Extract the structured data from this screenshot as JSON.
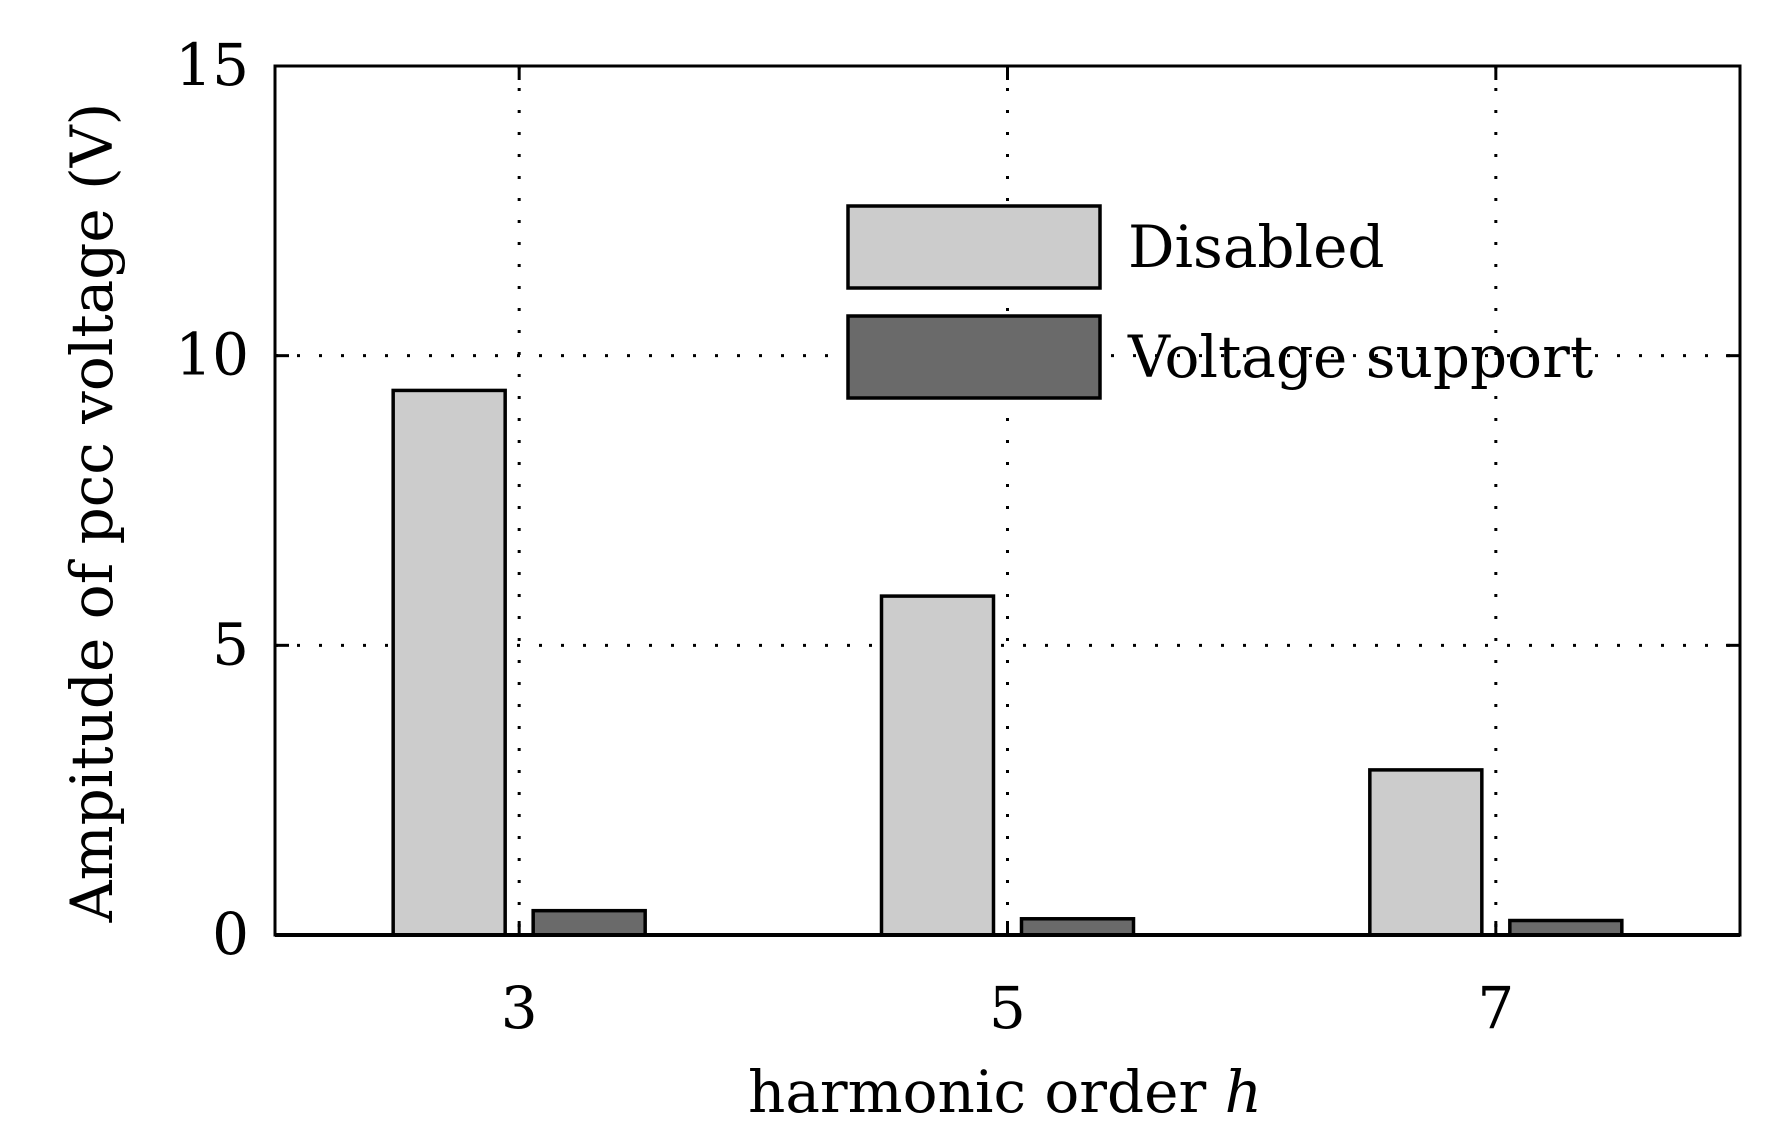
{
  "chart_data": {
    "type": "bar",
    "categories": [
      "3",
      "5",
      "7"
    ],
    "series": [
      {
        "name": "Disabled",
        "values": [
          9.4,
          5.85,
          2.85
        ],
        "color": "#cccccc"
      },
      {
        "name": "Voltage support",
        "values": [
          0.42,
          0.28,
          0.25
        ],
        "color": "#6a6a6a"
      }
    ],
    "xlabel": "harmonic order",
    "xlabel_var": "h",
    "ylabel": "Ampitude of pcc voltage (V)",
    "ylim": [
      0,
      15
    ],
    "yticks": [
      0,
      5,
      10,
      15
    ],
    "yticklabels": [
      "0",
      "5",
      "10",
      "15"
    ],
    "grid": true,
    "grid_style": "dotted",
    "legend_position": "top-center"
  }
}
